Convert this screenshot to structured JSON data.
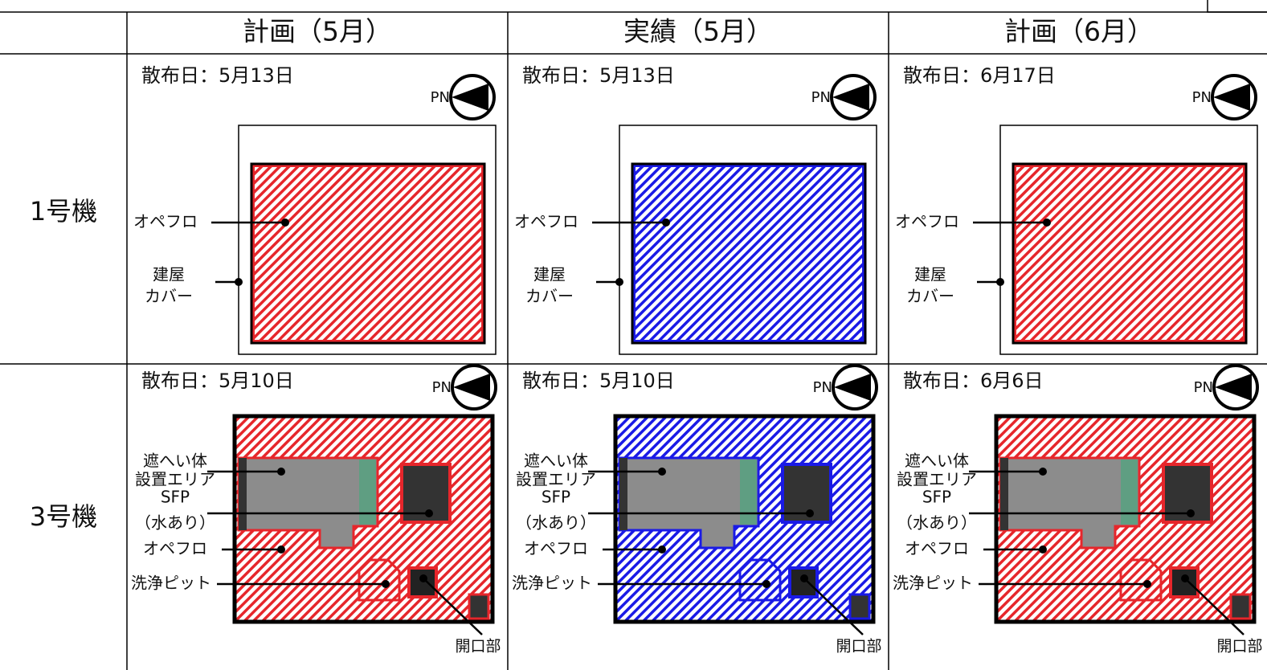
{
  "header": {
    "columns": [
      {
        "title": "計画（5月）",
        "color": "#e6262b"
      },
      {
        "title": "実績（5月）",
        "color": "#1a1ae6"
      },
      {
        "title": "計画（6月）",
        "color": "#e6262b"
      }
    ]
  },
  "north_label": "PN",
  "unit1": {
    "label": "1号機",
    "dates": [
      "散布日：5月13日",
      "散布日：5月13日",
      "散布日：6月17日"
    ],
    "operating_floor": "オペフロ",
    "building_cover": [
      "建屋",
      "カバー"
    ]
  },
  "unit3": {
    "label": "3号機",
    "dates": [
      "散布日：5月10日",
      "散布日：5月10日",
      "散布日：6月6日"
    ],
    "shield_area": [
      "遮へい体",
      "設置エリア"
    ],
    "sfp": [
      "SFP",
      "（水あり）"
    ],
    "operating_floor": "オペフロ",
    "washing_pit": "洗浄ピット",
    "opening": "開口部"
  }
}
